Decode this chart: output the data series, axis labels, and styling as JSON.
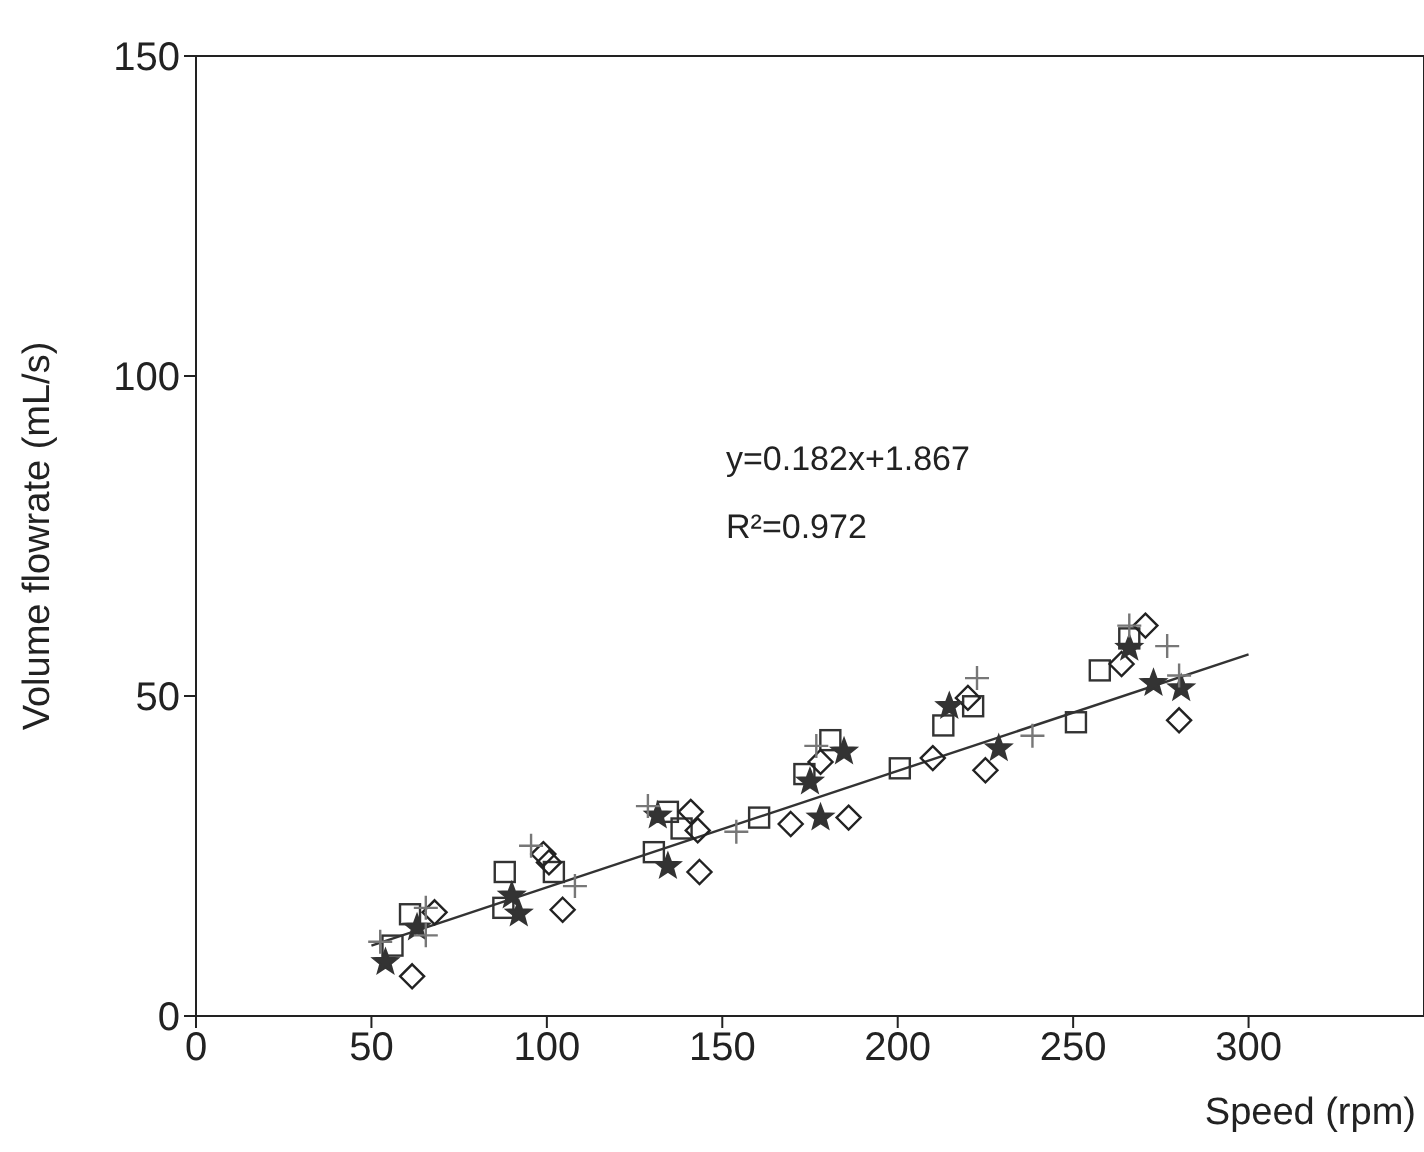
{
  "chart_data": {
    "type": "scatter",
    "xlabel": "Speed (rpm)",
    "ylabel": "Volume flowrate (mL/s)",
    "xlim": [
      0,
      350
    ],
    "xticks": [
      0,
      50,
      100,
      150,
      200,
      250,
      300
    ],
    "ylim": [
      0,
      150
    ],
    "yticks": [
      0,
      50,
      100,
      150
    ],
    "annotations": [
      "y=0.182x+1.867",
      "R²=0.972"
    ],
    "series": [
      {
        "color": "#333333",
        "marker": "square",
        "x": [
          61,
          56,
          88,
          87.6,
          102,
          130.5,
          134.5,
          138.4,
          160.5,
          173.4,
          180.8,
          200.6,
          213,
          221.5,
          250.8,
          257.6,
          266
        ],
        "values": [
          15.9,
          11,
          22.5,
          16.9,
          22.5,
          25.6,
          31.9,
          29.3,
          31,
          37.8,
          43.1,
          38.7,
          45.4,
          48.4,
          45.9,
          54,
          59
        ]
      },
      {
        "color": "#222222",
        "marker": "diamond",
        "x": [
          61.6,
          68,
          99,
          100.6,
          104.5,
          141,
          143,
          143.5,
          169.5,
          178,
          186,
          210,
          225,
          220,
          263.8,
          270.6,
          280.2
        ],
        "values": [
          6.2,
          16.2,
          25.3,
          24,
          16.6,
          31.9,
          29,
          22.5,
          30,
          39.7,
          31,
          40.3,
          38.4,
          49.7,
          55,
          61,
          46.2
        ]
      },
      {
        "color": "#333333",
        "marker": "star",
        "x": [
          54,
          63,
          90,
          92,
          131.6,
          134.5,
          178,
          184.7,
          175,
          214.7,
          228.8,
          266,
          272.9,
          280.8
        ],
        "values": [
          8.4,
          13.8,
          18.8,
          16,
          31.3,
          23.4,
          31,
          41.3,
          36.6,
          48.4,
          41.8,
          57.5,
          52,
          51.2
        ]
      },
      {
        "color": "#777777",
        "marker": "cross",
        "x": [
          52.5,
          65.5,
          65.5,
          95.5,
          108,
          128.8,
          154,
          176.8,
          222.6,
          238.4,
          276.8,
          280.2,
          266
        ],
        "values": [
          11.6,
          12.6,
          16.9,
          26.6,
          20.3,
          32.8,
          28.8,
          42.2,
          52.8,
          43.8,
          57.8,
          53.2,
          61
        ]
      },
      {
        "type": "line",
        "color": "#333333",
        "marker": "none",
        "x": [
          50,
          300
        ],
        "values": [
          11.0,
          56.5
        ]
      }
    ]
  }
}
